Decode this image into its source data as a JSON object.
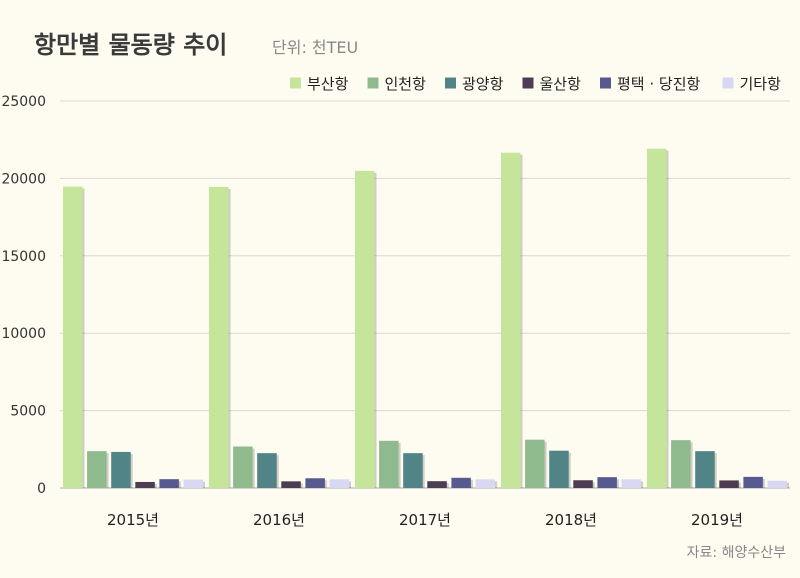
{
  "chart_data": {
    "type": "bar",
    "title": "항만별 물동량 추이",
    "unit_label": "단위: 천TEU",
    "source": "자료: 해양수산부",
    "categories": [
      "2015년",
      "2016년",
      "2017년",
      "2018년",
      "2019년"
    ],
    "ylim": [
      0,
      25000
    ],
    "yticks": [
      0,
      5000,
      10000,
      15000,
      20000,
      25000
    ],
    "grid": true,
    "legend_position": "top-right",
    "series": [
      {
        "name": "부산항",
        "color": "#c5e69a",
        "values": [
          19470,
          19450,
          20490,
          21660,
          21920
        ]
      },
      {
        "name": "인천항",
        "color": "#8fba8e",
        "values": [
          2380,
          2680,
          3050,
          3120,
          3090
        ]
      },
      {
        "name": "광양항",
        "color": "#508486",
        "values": [
          2330,
          2250,
          2250,
          2410,
          2380
        ]
      },
      {
        "name": "울산항",
        "color": "#4d3d52",
        "values": [
          390,
          430,
          440,
          500,
          490
        ]
      },
      {
        "name": "평택 · 당진항",
        "color": "#575a8e",
        "values": [
          570,
          630,
          660,
          700,
          720
        ]
      },
      {
        "name": "기타항",
        "color": "#d9d8f2",
        "values": [
          540,
          560,
          560,
          560,
          470
        ]
      }
    ]
  }
}
